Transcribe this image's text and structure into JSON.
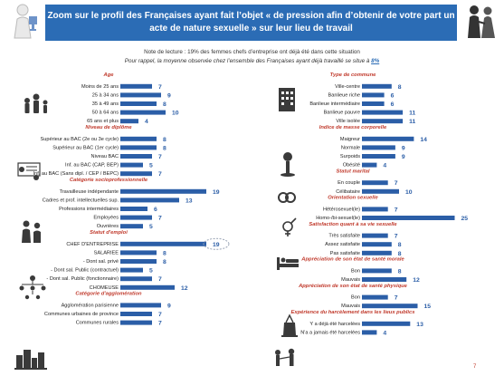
{
  "title": "Zoom sur le profil des Françaises ayant fait l’objet « de pression afin d’obtenir de votre part un acte de nature sexuelle » sur leur lieu de travail",
  "note_reading": "Note de lecture : 19% des femmes chefs d’entreprise ont déjà été dans cette situation",
  "note_average_prefix": "Pour rappel, la moyenne observée chez l’ensemble des Françaises ayant déjà travaillé se situe à",
  "note_average_value": "8%",
  "page_number": "7",
  "icons": [
    "trophy-figure-icon",
    "couple-icon",
    "ages-icon",
    "diploma-icon",
    "people-icon",
    "org-chart-icon",
    "city-icon",
    "building-icon",
    "scale-icon",
    "rings-icon",
    "gender-icon",
    "bed-icon",
    "health-icon",
    "harassment-icon"
  ],
  "colors": {
    "bar": "#2b5ea7",
    "section": "#c0392b",
    "title_bg": "#2b6cb5",
    "highlight": "#9aa4b5"
  },
  "chart_data": {
    "type": "bar",
    "orientation": "horizontal",
    "highlight": {
      "section": "Statut d'emploi",
      "category": "CHEF D'ENTREPRISE",
      "value": 19
    },
    "columns": [
      [
        {
          "section": "Age",
          "categories": [
            "Moins de 25 ans",
            "25 à 34 ans",
            "35 à 49 ans",
            "50 à 64 ans",
            "65 ans et plus"
          ],
          "values": [
            7,
            9,
            8,
            10,
            4
          ]
        },
        {
          "section": "Niveau de diplôme",
          "categories": [
            "Supérieur au BAC (2e ou 3e cycle)",
            "Supérieur au BAC (1er cycle)",
            "Niveau BAC",
            "Inf. au BAC (CAP, BEP)",
            "Inf. au BAC (Sans dipl. / CEP / BEPC)"
          ],
          "values": [
            8,
            8,
            7,
            5,
            7
          ]
        },
        {
          "section": "Catégorie socioprofessionnelle",
          "categories": [
            "Travailleuse indépendante",
            "Cadres et prof. intellectuelles sup.",
            "Professions intermédiaires",
            "Employées",
            "Ouvrières"
          ],
          "values": [
            19,
            13,
            6,
            7,
            5
          ]
        },
        {
          "section": "Statut d'emploi",
          "categories": [
            "CHEF D'ENTREPRISE",
            "SALARIEE",
            "- Dont sal. privé",
            "- Dont sal. Public (contractuel)",
            "- Dont sal. Public (fonctionnaire)",
            "CHOMEUSE"
          ],
          "values": [
            19,
            8,
            8,
            5,
            7,
            12
          ]
        },
        {
          "section": "Catégorie d'agglomération",
          "categories": [
            "Agglomération parisienne",
            "Communes urbaines de province",
            "Communes rurales"
          ],
          "values": [
            9,
            7,
            7
          ]
        }
      ],
      [
        {
          "section": "Type de commune",
          "categories": [
            "Ville-centre",
            "Banlieue riche",
            "Banlieue intermédiaire",
            "Banlieue pauvre",
            "Ville isolée"
          ],
          "values": [
            8,
            6,
            6,
            11,
            11
          ]
        },
        {
          "section": "Indice de masse corporelle",
          "categories": [
            "Maigreur",
            "Normale",
            "Surpoids",
            "Obésité"
          ],
          "values": [
            14,
            9,
            9,
            4
          ]
        },
        {
          "section": "Statut marital",
          "categories": [
            "En couple",
            "Célibataire"
          ],
          "values": [
            7,
            10
          ]
        },
        {
          "section": "Orientation sexuelle",
          "categories": [
            "Hétérosexuel(le)",
            "Homo-/bi-sexuel(le)"
          ],
          "values": [
            7,
            25
          ]
        },
        {
          "section": "Satisfaction quant à sa vie sexuelle",
          "categories": [
            "Très satisfaite",
            "Assez satisfaite",
            "Pas satisfaite"
          ],
          "values": [
            7,
            8,
            8
          ]
        },
        {
          "section": "Appréciation de son état de santé morale",
          "categories": [
            "Bon",
            "Mauvais"
          ],
          "values": [
            8,
            12
          ]
        },
        {
          "section": "Appréciation de son état de santé physique",
          "categories": [
            "Bon",
            "Mauvais"
          ],
          "values": [
            7,
            15
          ]
        },
        {
          "section": "Expérience du harcèlement dans les lieux publics",
          "categories": [
            "Y a déjà été harcelées",
            "N'a a jamais été harcelées"
          ],
          "values": [
            13,
            4
          ]
        }
      ]
    ]
  }
}
